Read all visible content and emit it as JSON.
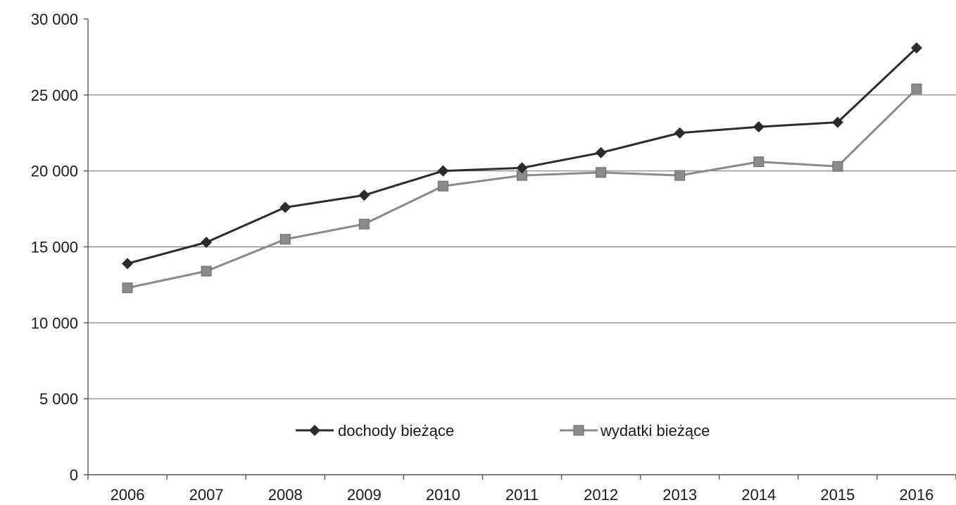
{
  "chart_data": {
    "type": "line",
    "title": "",
    "xlabel": "",
    "ylabel": "",
    "categories": [
      "2006",
      "2007",
      "2008",
      "2009",
      "2010",
      "2011",
      "2012",
      "2013",
      "2014",
      "2015",
      "2016"
    ],
    "ylim": [
      0,
      30000
    ],
    "yticks": [
      0,
      5000,
      10000,
      15000,
      20000,
      25000,
      30000
    ],
    "ytick_labels": [
      "0",
      "5 000",
      "10 000",
      "15 000",
      "20 000",
      "25 000",
      "30 000"
    ],
    "grid": true,
    "legend_position": "bottom-center (inside plot)",
    "series": [
      {
        "name": "dochody bieżące",
        "marker": "diamond",
        "color": "#2b2b2b",
        "values": [
          13900,
          15300,
          17600,
          18400,
          20000,
          20200,
          21200,
          22500,
          22900,
          23200,
          28100
        ]
      },
      {
        "name": "wydatki bieżące",
        "marker": "square",
        "color": "#8a8a8a",
        "values": [
          12300,
          13400,
          15500,
          16500,
          19000,
          19700,
          19900,
          19700,
          20600,
          20300,
          25400
        ]
      }
    ]
  }
}
